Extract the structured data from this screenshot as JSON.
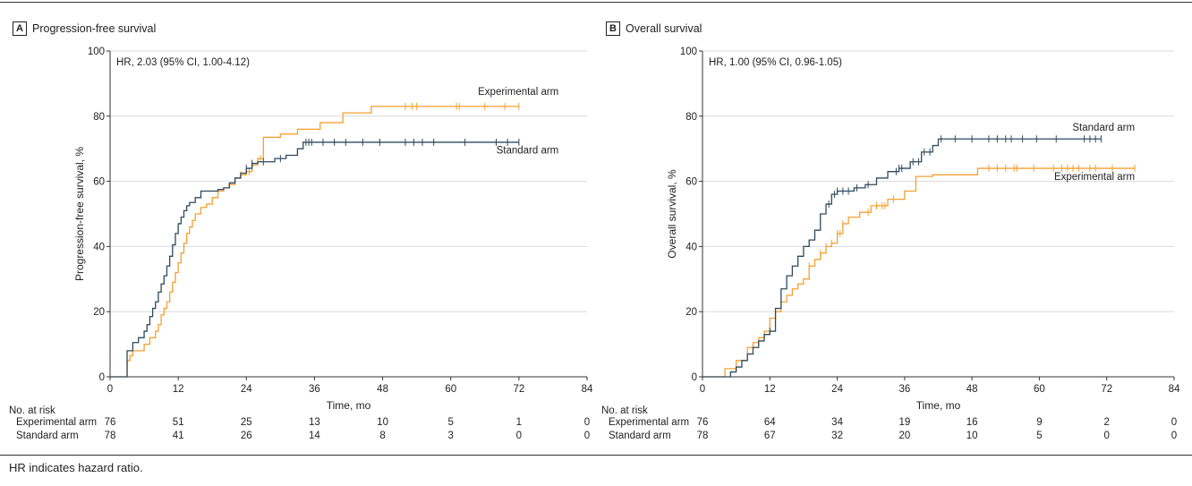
{
  "footnote": "HR indicates hazard ratio.",
  "colors": {
    "experimental": "#F5A031",
    "standard": "#2E4A5C",
    "grid": "#d9d9d9",
    "axis": "#333333"
  },
  "chart_data": [
    {
      "type": "line",
      "panel_letter": "A",
      "title": "Progression-free survival",
      "annotation": "HR, 2.03 (95% CI, 1.00-4.12)",
      "xlabel": "Time, mo",
      "ylabel": "Progression-free survival, %",
      "xlim": [
        0,
        84
      ],
      "ylim": [
        0,
        100
      ],
      "xticks": [
        0,
        12,
        24,
        36,
        48,
        60,
        72,
        84
      ],
      "yticks": [
        0,
        20,
        40,
        60,
        80,
        100
      ],
      "grid": "horizontal",
      "series": [
        {
          "name": "Experimental arm",
          "color_key": "experimental",
          "x": [
            0,
            3,
            3.5,
            4,
            6,
            7,
            8,
            8.5,
            9,
            9.5,
            10,
            10.5,
            11,
            11.5,
            12,
            12.5,
            13,
            13.5,
            14,
            14.5,
            15,
            16,
            17,
            18,
            19,
            20,
            21,
            22,
            23,
            24,
            25,
            26,
            27,
            30,
            33,
            37,
            41,
            46,
            51,
            72
          ],
          "y": [
            0,
            5,
            6.5,
            8,
            10,
            12,
            14,
            16,
            19,
            21,
            23,
            26,
            29,
            32,
            35,
            38,
            41,
            44,
            46,
            48,
            50,
            52,
            53,
            55,
            57,
            58,
            59,
            61,
            62,
            63,
            65,
            67,
            73.5,
            74.5,
            76,
            78,
            81,
            83,
            83,
            83
          ],
          "censor_x": [
            23,
            24.5,
            26.5,
            52,
            53.2,
            54,
            61,
            61.5,
            66,
            69.5,
            72
          ],
          "label": "Experimental arm",
          "label_pos": [
            79,
            86.5
          ]
        },
        {
          "name": "Standard arm",
          "color_key": "standard",
          "x": [
            0,
            3,
            4,
            5,
            6,
            6.5,
            7,
            7.5,
            8,
            8.5,
            9,
            9.5,
            10,
            10.5,
            11,
            11.5,
            12,
            12.5,
            13,
            13.5,
            14,
            15,
            16,
            17,
            18,
            19,
            20,
            21,
            22,
            23,
            24,
            25,
            26,
            27,
            29,
            31,
            33,
            34,
            72
          ],
          "y": [
            0,
            8,
            10.5,
            12,
            14,
            16,
            18.5,
            21,
            23,
            26,
            28.5,
            31,
            34,
            37,
            40.5,
            44,
            47,
            49,
            51,
            52.5,
            53.5,
            55,
            57,
            57,
            57,
            57.5,
            58,
            59.5,
            61,
            62.5,
            64,
            65.5,
            66,
            66,
            67,
            68,
            70,
            72,
            72
          ],
          "censor_x": [
            24,
            25,
            27,
            30,
            34.5,
            35,
            35.5,
            37.5,
            39.5,
            41.5,
            44.5,
            47.5,
            52,
            53.5,
            55,
            57,
            62.5,
            68,
            70,
            72
          ],
          "label": "Standard arm",
          "label_pos": [
            79,
            68.5
          ]
        }
      ],
      "risk_table": {
        "header": "No. at risk",
        "times": [
          0,
          12,
          24,
          36,
          48,
          60,
          72,
          84
        ],
        "rows": [
          {
            "label": "Experimental arm",
            "values": [
              "76",
              "51",
              "25",
              "13",
              "10",
              "5",
              "1",
              "0"
            ]
          },
          {
            "label": "Standard arm",
            "values": [
              "78",
              "41",
              "26",
              "14",
              "8",
              "3",
              "0",
              "0"
            ]
          }
        ]
      }
    },
    {
      "type": "line",
      "panel_letter": "B",
      "title": "Overall survival",
      "annotation": "HR, 1.00 (95% CI, 0.96-1.05)",
      "xlabel": "Time, mo",
      "ylabel": "Overall survival, %",
      "xlim": [
        0,
        84
      ],
      "ylim": [
        0,
        100
      ],
      "xticks": [
        0,
        12,
        24,
        36,
        48,
        60,
        72,
        84
      ],
      "yticks": [
        0,
        20,
        40,
        60,
        80,
        100
      ],
      "grid": "horizontal",
      "series": [
        {
          "name": "Experimental arm",
          "color_key": "experimental",
          "x": [
            0,
            4,
            6,
            8,
            9,
            10,
            11,
            12,
            13,
            14,
            15,
            16,
            17,
            18,
            19,
            20,
            21,
            22,
            23,
            24,
            25,
            26,
            28,
            30,
            33,
            36,
            38,
            41,
            49,
            77
          ],
          "y": [
            0,
            2.5,
            5,
            9,
            10.5,
            12,
            14,
            18,
            20,
            23,
            25,
            27,
            28.5,
            30,
            34,
            36,
            38,
            40,
            41,
            44,
            47,
            49,
            50.5,
            52.5,
            54.5,
            57,
            61.5,
            62,
            64,
            64
          ],
          "censor_x": [
            19,
            21,
            22,
            23,
            24,
            24.5,
            25,
            29.5,
            31,
            32,
            32.5,
            34,
            51,
            52.5,
            54,
            55.5,
            56,
            59,
            62.5,
            64,
            65,
            66,
            67,
            69,
            70,
            73,
            77
          ],
          "label": "Experimental arm",
          "label_pos": [
            77,
            60.5
          ]
        },
        {
          "name": "Standard arm",
          "color_key": "standard",
          "x": [
            0,
            5,
            6,
            7,
            8,
            9,
            10,
            11,
            12,
            13,
            14,
            15,
            16,
            17,
            18,
            19,
            20,
            21,
            22,
            23,
            24,
            27,
            29,
            31,
            33,
            35,
            37,
            39,
            41,
            42,
            71
          ],
          "y": [
            0,
            1.5,
            3,
            5,
            7,
            9,
            11,
            13,
            14,
            21,
            27,
            31,
            34,
            37,
            40,
            42,
            45,
            50,
            53,
            56,
            57,
            58,
            59,
            61,
            63,
            64,
            66,
            69,
            71,
            73,
            73
          ],
          "censor_x": [
            12,
            22.5,
            23.5,
            24,
            25,
            26,
            27.5,
            29.5,
            34.5,
            35,
            35.5,
            37.5,
            38.5,
            39.5,
            40.5,
            42.5,
            45,
            48,
            51,
            52.5,
            54,
            55,
            57,
            59.5,
            63,
            68,
            69,
            70,
            71
          ],
          "label": "Standard arm",
          "label_pos": [
            77,
            75.5
          ]
        }
      ],
      "risk_table": {
        "header": "No. at risk",
        "times": [
          0,
          12,
          24,
          36,
          48,
          60,
          72,
          84
        ],
        "rows": [
          {
            "label": "Experimental arm",
            "values": [
              "76",
              "64",
              "34",
              "19",
              "16",
              "9",
              "2",
              "0"
            ]
          },
          {
            "label": "Standard arm",
            "values": [
              "78",
              "67",
              "32",
              "20",
              "10",
              "5",
              "0",
              "0"
            ]
          }
        ]
      }
    }
  ]
}
